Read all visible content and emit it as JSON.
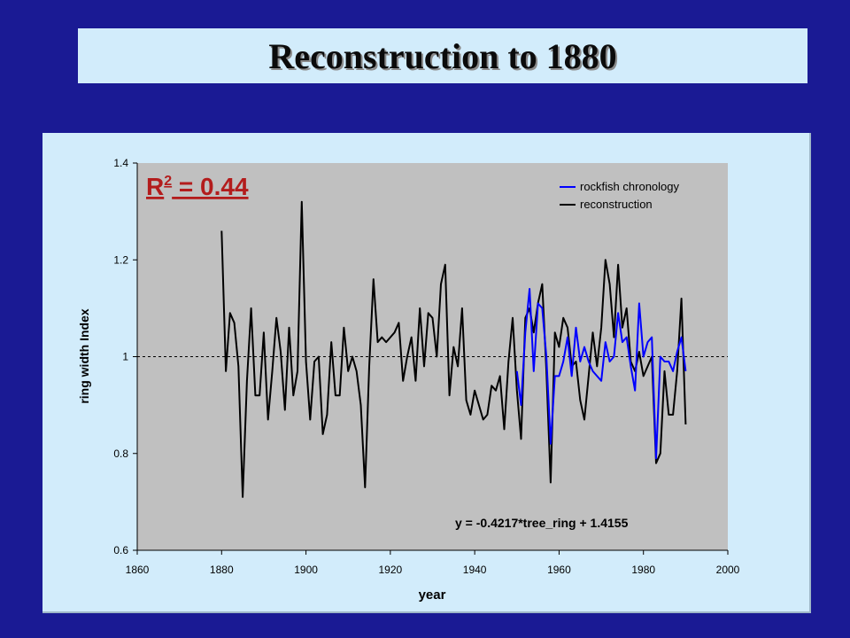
{
  "slide": {
    "title": "Reconstruction to 1880"
  },
  "colors": {
    "background": "#1a1a94",
    "panel": "#d2ecfb",
    "plot_area": "#c0c0c0",
    "rockfish": "#0000ff",
    "reconstruction": "#000000"
  },
  "chart_data": {
    "type": "line",
    "title": "",
    "xlabel": "year",
    "ylabel": "ring width Index",
    "xlim": [
      1860,
      2000
    ],
    "ylim": [
      0.6,
      1.4
    ],
    "x_ticks": [
      "1860",
      "1880",
      "1900",
      "1920",
      "1940",
      "1960",
      "1980",
      "2000"
    ],
    "y_ticks": [
      "0.6",
      "0.8",
      "1",
      "1.2",
      "1.4"
    ],
    "grid": false,
    "reference_line": 1.0,
    "legend_position": "top-right",
    "annotations": {
      "r2_label": "R",
      "r2_superscript": "2",
      "r2_value": " = 0.44",
      "equation": "y = -0.4217*tree_ring + 1.4155"
    },
    "series": [
      {
        "name": "rockfish chronology",
        "color": "#0000ff",
        "x": [
          1950,
          1951,
          1952,
          1953,
          1954,
          1955,
          1956,
          1957,
          1958,
          1959,
          1960,
          1961,
          1962,
          1963,
          1964,
          1965,
          1966,
          1967,
          1968,
          1969,
          1970,
          1971,
          1972,
          1973,
          1974,
          1975,
          1976,
          1977,
          1978,
          1979,
          1980,
          1981,
          1982,
          1983,
          1984,
          1985,
          1986,
          1987,
          1988,
          1989,
          1990
        ],
        "y": [
          0.97,
          0.9,
          1.05,
          1.14,
          0.97,
          1.11,
          1.1,
          1.0,
          0.82,
          0.96,
          0.96,
          0.99,
          1.04,
          0.96,
          1.06,
          0.99,
          1.02,
          0.99,
          0.97,
          0.96,
          0.95,
          1.03,
          0.99,
          1.0,
          1.09,
          1.03,
          1.04,
          0.98,
          0.93,
          1.11,
          1.0,
          1.03,
          1.04,
          0.79,
          1.0,
          0.99,
          0.99,
          0.97,
          1.01,
          1.04,
          0.97
        ]
      },
      {
        "name": "reconstruction",
        "color": "#000000",
        "x": [
          1880,
          1881,
          1882,
          1883,
          1884,
          1885,
          1886,
          1887,
          1888,
          1889,
          1890,
          1891,
          1892,
          1893,
          1894,
          1895,
          1896,
          1897,
          1898,
          1899,
          1900,
          1901,
          1902,
          1903,
          1904,
          1905,
          1906,
          1907,
          1908,
          1909,
          1910,
          1911,
          1912,
          1913,
          1914,
          1915,
          1916,
          1917,
          1918,
          1919,
          1920,
          1921,
          1922,
          1923,
          1924,
          1925,
          1926,
          1927,
          1928,
          1929,
          1930,
          1931,
          1932,
          1933,
          1934,
          1935,
          1936,
          1937,
          1938,
          1939,
          1940,
          1941,
          1942,
          1943,
          1944,
          1945,
          1946,
          1947,
          1948,
          1949,
          1950,
          1951,
          1952,
          1953,
          1954,
          1955,
          1956,
          1957,
          1958,
          1959,
          1960,
          1961,
          1962,
          1963,
          1964,
          1965,
          1966,
          1967,
          1968,
          1969,
          1970,
          1971,
          1972,
          1973,
          1974,
          1975,
          1976,
          1977,
          1978,
          1979,
          1980,
          1981,
          1982,
          1983,
          1984,
          1985,
          1986,
          1987,
          1988,
          1989,
          1990
        ],
        "y": [
          1.26,
          0.97,
          1.09,
          1.07,
          0.98,
          0.71,
          0.95,
          1.1,
          0.92,
          0.92,
          1.05,
          0.87,
          0.97,
          1.08,
          1.01,
          0.89,
          1.06,
          0.92,
          0.97,
          1.32,
          0.99,
          0.87,
          0.99,
          1.0,
          0.84,
          0.88,
          1.03,
          0.92,
          0.92,
          1.06,
          0.97,
          1.0,
          0.97,
          0.9,
          0.73,
          0.98,
          1.16,
          1.03,
          1.04,
          1.03,
          1.04,
          1.05,
          1.07,
          0.95,
          1.0,
          1.04,
          0.95,
          1.1,
          0.98,
          1.09,
          1.08,
          1.0,
          1.15,
          1.19,
          0.92,
          1.02,
          0.98,
          1.1,
          0.91,
          0.88,
          0.93,
          0.9,
          0.87,
          0.88,
          0.94,
          0.93,
          0.96,
          0.85,
          0.99,
          1.08,
          0.93,
          0.83,
          1.08,
          1.1,
          1.05,
          1.11,
          1.15,
          0.97,
          0.74,
          1.05,
          1.02,
          1.08,
          1.06,
          0.98,
          0.99,
          0.91,
          0.87,
          0.96,
          1.05,
          0.98,
          1.06,
          1.2,
          1.15,
          1.04,
          1.19,
          1.06,
          1.1,
          0.99,
          0.97,
          1.01,
          0.96,
          0.98,
          1.0,
          0.78,
          0.8,
          0.97,
          0.88,
          0.88,
          0.97,
          1.12,
          0.86
        ]
      }
    ]
  }
}
